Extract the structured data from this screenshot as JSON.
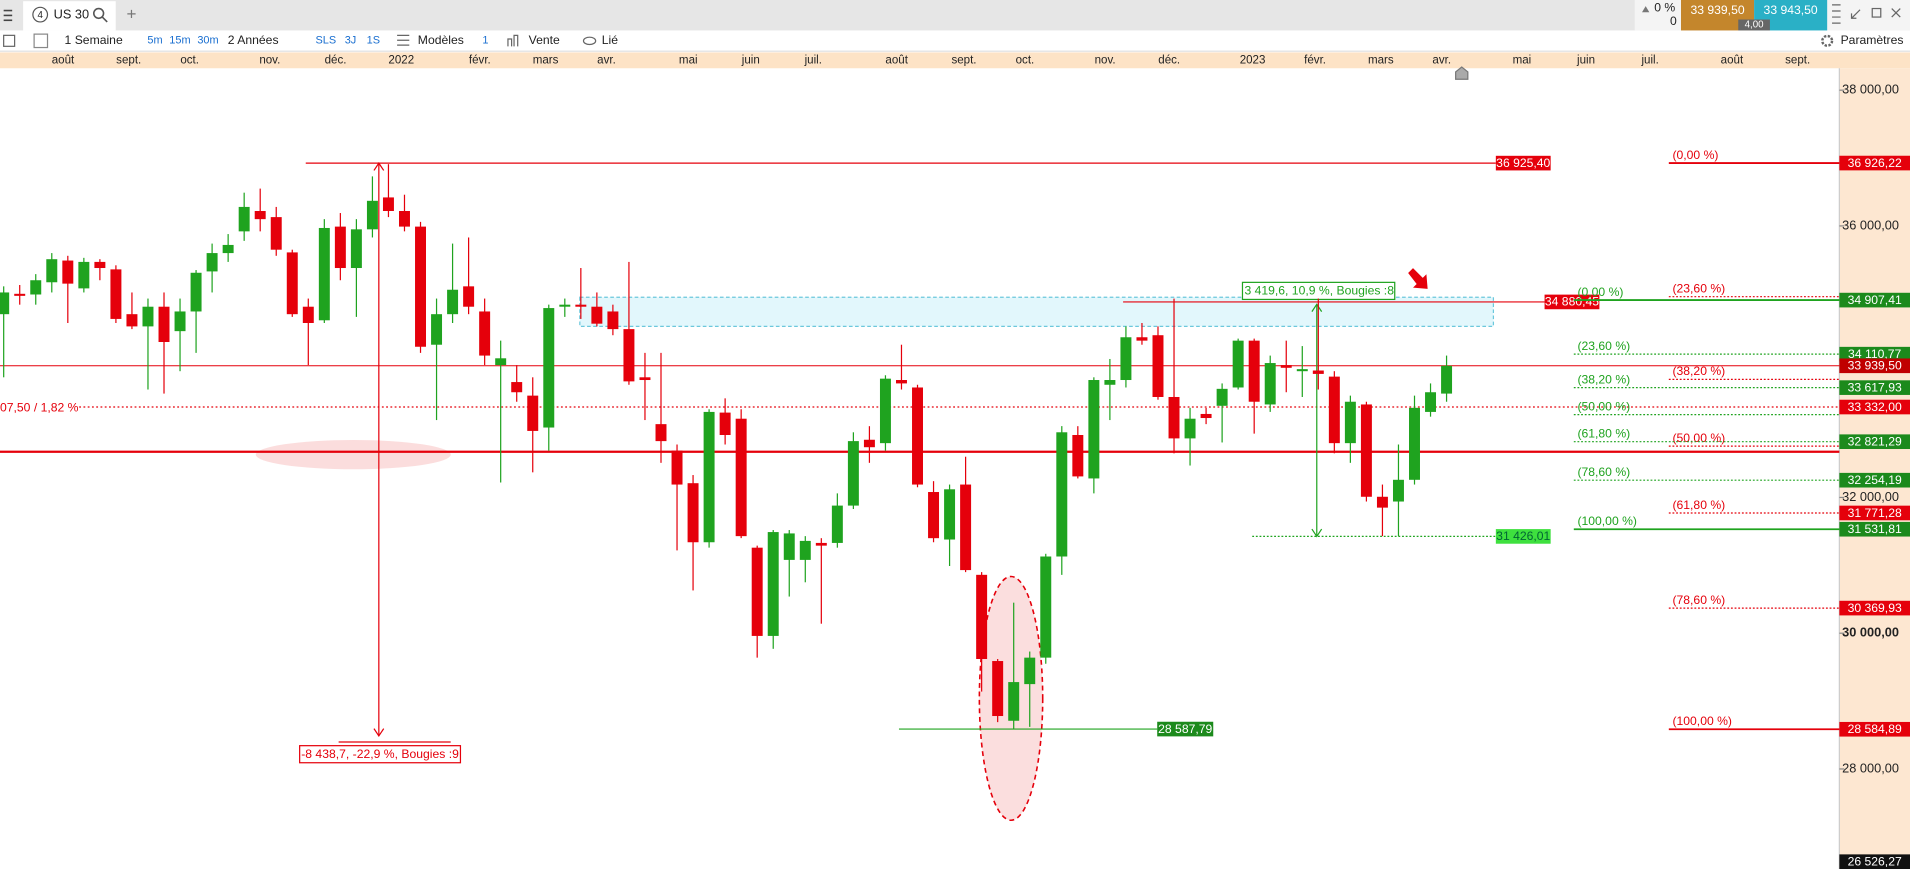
{
  "ui": {
    "tab_number": "4",
    "tab": "US 30",
    "change": "0 %",
    "change_count": "0",
    "bid": "33 939,50",
    "ask": "33 943,50",
    "spread": "4,00",
    "toolbar": {
      "period": "1 Semaine",
      "m5": "5m",
      "m15": "15m",
      "m30": "30m",
      "range": "2 Années",
      "sls": "SLS",
      "d3": "3J",
      "w1": "1S",
      "models": "Modèles",
      "one": "1",
      "sell": "Vente",
      "linked": "Lié",
      "settings": "Paramètres"
    }
  },
  "chart_data": {
    "type": "candlestick",
    "up_color": "#1fa31f",
    "down_color": "#e5000b",
    "xlim": [
      -0.23,
      114.5
    ],
    "ylim": [
      26526.27,
      38305
    ],
    "xticks": [
      {
        "value": 3.7,
        "label": "août"
      },
      {
        "value": 7.8,
        "label": "sept."
      },
      {
        "value": 11.6,
        "label": "oct."
      },
      {
        "value": 16.6,
        "label": "nov."
      },
      {
        "value": 20.7,
        "label": "déc."
      },
      {
        "value": 24.8,
        "label": "2022"
      },
      {
        "value": 29.7,
        "label": "févr."
      },
      {
        "value": 33.8,
        "label": "mars"
      },
      {
        "value": 37.6,
        "label": "avr."
      },
      {
        "value": 42.7,
        "label": "mai"
      },
      {
        "value": 46.6,
        "label": "juin"
      },
      {
        "value": 50.5,
        "label": "juil."
      },
      {
        "value": 55.7,
        "label": "août"
      },
      {
        "value": 59.9,
        "label": "sept."
      },
      {
        "value": 63.7,
        "label": "oct."
      },
      {
        "value": 68.7,
        "label": "nov."
      },
      {
        "value": 72.7,
        "label": "déc."
      },
      {
        "value": 77.9,
        "label": "2023"
      },
      {
        "value": 81.8,
        "label": "févr."
      },
      {
        "value": 85.9,
        "label": "mars"
      },
      {
        "value": 89.7,
        "label": "avr."
      },
      {
        "value": 94.7,
        "label": "mai"
      },
      {
        "value": 98.7,
        "label": "juin"
      },
      {
        "value": 102.7,
        "label": "juil."
      },
      {
        "value": 107.8,
        "label": "août"
      },
      {
        "value": 111.9,
        "label": "sept."
      }
    ],
    "yticks": [
      {
        "value": 38000,
        "label": "38 000,00"
      },
      {
        "value": 36000,
        "label": "36 000,00"
      },
      {
        "value": 32000,
        "label": "32 000,00"
      },
      {
        "value": 30000,
        "label": "30 000,00"
      },
      {
        "value": 28000,
        "label": "28 000,00"
      }
    ],
    "ohlc": [
      [
        34700,
        35110,
        33770,
        35020
      ],
      [
        35000,
        35130,
        34840,
        34970
      ],
      [
        34990,
        35290,
        34840,
        35200
      ],
      [
        35170,
        35600,
        35020,
        35510
      ],
      [
        35490,
        35560,
        34570,
        35150
      ],
      [
        35080,
        35530,
        35020,
        35470
      ],
      [
        35470,
        35510,
        35200,
        35380
      ],
      [
        35360,
        35420,
        34570,
        34630
      ],
      [
        34700,
        35020,
        34480,
        34520
      ],
      [
        34520,
        34930,
        33590,
        34810
      ],
      [
        34810,
        35020,
        33530,
        34290
      ],
      [
        34450,
        34930,
        33860,
        34740
      ],
      [
        34740,
        35350,
        34130,
        35310
      ],
      [
        35330,
        35740,
        35020,
        35600
      ],
      [
        35600,
        35880,
        35470,
        35720
      ],
      [
        35920,
        36490,
        35780,
        36280
      ],
      [
        36220,
        36550,
        35920,
        36100
      ],
      [
        36130,
        36280,
        35560,
        35650
      ],
      [
        35610,
        35650,
        34660,
        34700
      ],
      [
        34810,
        34930,
        33950,
        34570
      ],
      [
        34610,
        36100,
        34570,
        35970
      ],
      [
        35990,
        36190,
        35200,
        35380
      ],
      [
        35380,
        36100,
        34660,
        35950
      ],
      [
        35950,
        36730,
        35830,
        36370
      ],
      [
        36420,
        36910,
        36130,
        36220
      ],
      [
        36220,
        36460,
        35920,
        35990
      ],
      [
        35990,
        36060,
        34130,
        34220
      ],
      [
        34250,
        34930,
        33140,
        34700
      ],
      [
        34700,
        35740,
        34570,
        35060
      ],
      [
        35110,
        35830,
        34700,
        34810
      ],
      [
        34740,
        34930,
        33950,
        34090
      ],
      [
        33950,
        34310,
        32220,
        34050
      ],
      [
        33700,
        33950,
        33410,
        33550
      ],
      [
        33500,
        33770,
        32370,
        32980
      ],
      [
        33030,
        34840,
        32690,
        34790
      ],
      [
        34810,
        34930,
        34660,
        34840
      ],
      [
        34840,
        35380,
        34630,
        34810
      ],
      [
        34810,
        35020,
        34520,
        34560
      ],
      [
        34740,
        34840,
        34390,
        34480
      ],
      [
        34480,
        35470,
        33660,
        33710
      ],
      [
        33770,
        34130,
        33140,
        33730
      ],
      [
        33080,
        34130,
        32510,
        32830
      ],
      [
        32690,
        32780,
        31220,
        32190
      ],
      [
        32210,
        32330,
        30630,
        31340
      ],
      [
        31340,
        33300,
        31260,
        33260
      ],
      [
        33250,
        33460,
        32780,
        32920
      ],
      [
        33160,
        33300,
        31400,
        31430
      ],
      [
        31260,
        31290,
        29640,
        29960
      ],
      [
        29960,
        31520,
        29770,
        31490
      ],
      [
        31080,
        31520,
        30540,
        31470
      ],
      [
        31080,
        31430,
        30750,
        31360
      ],
      [
        31330,
        31400,
        30140,
        31290
      ],
      [
        31330,
        32060,
        31260,
        31880
      ],
      [
        31880,
        32960,
        31830,
        32830
      ],
      [
        32850,
        33050,
        32510,
        32740
      ],
      [
        32800,
        33800,
        32690,
        33750
      ],
      [
        33730,
        34250,
        33590,
        33680
      ],
      [
        33620,
        33660,
        32150,
        32190
      ],
      [
        32080,
        32240,
        31340,
        31400
      ],
      [
        31380,
        32190,
        30990,
        32120
      ],
      [
        32190,
        32600,
        30900,
        30930
      ],
      [
        30860,
        30900,
        29140,
        29620
      ],
      [
        29590,
        29620,
        28690,
        28780
      ],
      [
        28710,
        30450,
        28590,
        29280
      ],
      [
        29250,
        29730,
        28620,
        29640
      ],
      [
        29640,
        31170,
        29550,
        31130
      ],
      [
        31130,
        33050,
        30860,
        32960
      ],
      [
        32920,
        33050,
        32280,
        32310
      ],
      [
        32280,
        33770,
        32060,
        33730
      ],
      [
        33660,
        34040,
        33140,
        33730
      ],
      [
        33730,
        34520,
        33620,
        34360
      ],
      [
        34360,
        34570,
        34250,
        34310
      ],
      [
        34390,
        34520,
        33440,
        33480
      ],
      [
        33480,
        34930,
        32650,
        32870
      ],
      [
        32870,
        33320,
        32470,
        33160
      ],
      [
        33230,
        33320,
        33080,
        33170
      ],
      [
        33350,
        33680,
        32810,
        33600
      ],
      [
        33620,
        34340,
        33590,
        34310
      ],
      [
        34310,
        34340,
        32940,
        33410
      ],
      [
        33370,
        34090,
        33260,
        33980
      ],
      [
        33950,
        34310,
        33550,
        33910
      ],
      [
        33860,
        34230,
        33480,
        33890
      ],
      [
        33870,
        34930,
        33590,
        33820
      ],
      [
        33780,
        33860,
        32650,
        32800
      ],
      [
        32800,
        33500,
        32510,
        33410
      ],
      [
        33370,
        33410,
        31940,
        32010
      ],
      [
        32010,
        32190,
        31430,
        31850
      ],
      [
        31940,
        32780,
        31430,
        32260
      ],
      [
        32260,
        33500,
        32190,
        33320
      ],
      [
        33260,
        33680,
        33190,
        33550
      ],
      [
        33530,
        34090,
        33410,
        33940
      ]
    ],
    "price_labels": [
      {
        "value": 36926.22,
        "label": "36 926,22",
        "color": "#e5000b"
      },
      {
        "value": 34907.41,
        "label": "34 907,41",
        "color": "#1c8a1c"
      },
      {
        "value": 34110.77,
        "label": "34 110,77",
        "color": "#1c8a1c"
      },
      {
        "value": 33939.5,
        "label": "33 939,50",
        "color": "#c00000"
      },
      {
        "value": 33617.93,
        "label": "33 617,93",
        "color": "#1c8a1c"
      },
      {
        "value": 33332.0,
        "label": "33 332,00",
        "color": "#e5000b"
      },
      {
        "value": 32821.29,
        "label": "32 821,29",
        "color": "#1c8a1c"
      },
      {
        "value": 32254.19,
        "label": "32 254,19",
        "color": "#1c8a1c"
      },
      {
        "value": 31771.28,
        "label": "31 771,28",
        "color": "#e5000b"
      },
      {
        "value": 31531.81,
        "label": "31 531,81",
        "color": "#1c8a1c"
      },
      {
        "value": 30369.93,
        "label": "30 369,93",
        "color": "#e5000b"
      },
      {
        "value": 28584.89,
        "label": "28 584,89",
        "color": "#e5000b"
      },
      {
        "value": 26526.27,
        "label": "26 526,27",
        "color": "#111111"
      }
    ],
    "fib_red": [
      {
        "label": "(0,00 %)",
        "value": 36926.22
      },
      {
        "label": "(23,60 %)",
        "value": 34957.67
      },
      {
        "label": "(38,20 %)",
        "value": 33739.83
      },
      {
        "label": "(50,00 %)",
        "value": 32755.56
      },
      {
        "label": "(61,80 %)",
        "value": 31771.28
      },
      {
        "label": "(78,60 %)",
        "value": 30369.93
      },
      {
        "label": "(100,00 %)",
        "value": 28584.89
      }
    ],
    "fib_green": [
      {
        "label": "(0,00 %)",
        "value": 34907.41
      },
      {
        "label": "(23,60 %)",
        "value": 34110.77
      },
      {
        "label": "(38,20 %)",
        "value": 33617.93
      },
      {
        "label": "(50,00 %)",
        "value": 33219.61
      },
      {
        "label": "(61,80 %)",
        "value": 32821.29
      },
      {
        "label": "(78,60 %)",
        "value": 32254.19
      },
      {
        "label": "(100,00 %)",
        "value": 31531.81
      }
    ],
    "high_line": {
      "value": 36925.4,
      "label": "36 925,40"
    },
    "resistance": {
      "value": 34880.45,
      "label": "34 880,45"
    },
    "range_box": {
      "top": 34950,
      "bottom": 34520
    },
    "support_line": 32673,
    "dotted_label": "07,50 / 1,82 %",
    "measure_down": {
      "from": 36925.4,
      "to": 28486.7,
      "label": "-8 438,7, -22,9 %, Bougies :9"
    },
    "measure_up": {
      "from": 31426.01,
      "to": 34845.6,
      "label": "3 419,6, 10,9 %, Bougies :8"
    },
    "low_left": {
      "value": 28587.79,
      "label": "28 587,79"
    },
    "low_right": {
      "value": 31426.01,
      "label": "31 426,01"
    }
  }
}
